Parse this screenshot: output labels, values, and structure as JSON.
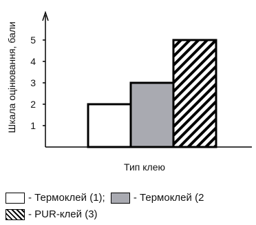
{
  "chart_data": {
    "type": "bar",
    "categories": [
      "Термоклей (1)",
      "Термоклей (2)",
      "PUR-клей (3)"
    ],
    "values": [
      2,
      3,
      5
    ],
    "xlabel": "Тип клею",
    "ylabel": "Шкала оцінювання, бали",
    "yticks": [
      1,
      2,
      3,
      4,
      5
    ],
    "ylim": [
      0,
      5.5
    ],
    "grid": false,
    "legend_position": "bottom-left",
    "fills": [
      "white",
      "gray",
      "hatched"
    ],
    "colors": {
      "gray": "#a9aab1",
      "outline": "#000000",
      "white": "#ffffff"
    }
  },
  "legend": [
    {
      "label": "- Термоклей (1);"
    },
    {
      "label": "- Термоклей (2"
    },
    {
      "label": "- PUR-клей (3)"
    }
  ]
}
